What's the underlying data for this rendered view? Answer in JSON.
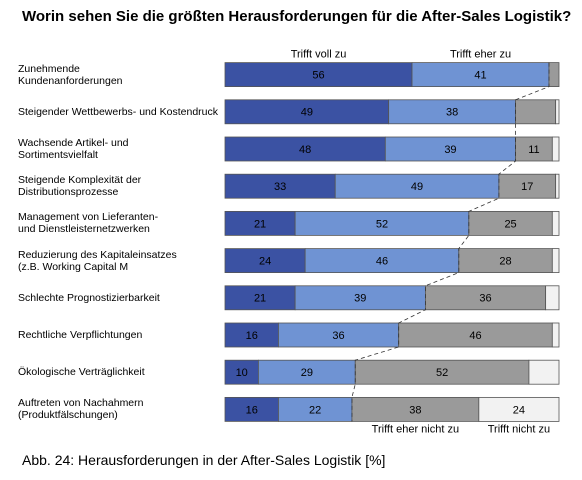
{
  "chart_data": {
    "type": "stacked-bar-horizontal",
    "title": "Worin sehen Sie die größten Herausforderungen für die After-Sales Logistik?",
    "caption": "Abb. 24: Herausforderungen in der After-Sales Logistik [%]",
    "categories": [
      "Zunehmende\nKundenanforderungen",
      "Steigender Wettbewerbs- und Kostendruck",
      "Wachsende Artikel- und\nSortimentsvielfalt",
      "Steigende Komplexität der\nDistributionsprozesse",
      "Management von Lieferanten-\nund Dienstleisternetzwerken",
      "Reduzierung des Kapitaleinsatzes\n(z.B. Working Capital M",
      "Schlechte Prognostizierbarkeit",
      "Rechtliche Verpflichtungen",
      "Ökologische Verträglichkeit",
      "Auftreten von Nachahmern\n(Produktfälschungen)"
    ],
    "xlim": [
      0,
      100
    ],
    "series": [
      {
        "name": "Trifft voll zu",
        "color": "#3b52a3",
        "label_color": "#ffffff",
        "legend": "top",
        "values": [
          56,
          49,
          48,
          33,
          21,
          24,
          21,
          16,
          10,
          16
        ],
        "value_labels": [
          "56",
          "49",
          "48",
          "33",
          "21",
          "24",
          "21",
          "16",
          "10",
          "16"
        ]
      },
      {
        "name": "Trifft eher zu",
        "color": "#6f93d3",
        "label_color": "#ffffff",
        "legend": "top",
        "values": [
          41,
          38,
          39,
          49,
          52,
          46,
          39,
          36,
          29,
          22
        ],
        "value_labels": [
          "41",
          "38",
          "39",
          "49",
          "52",
          "46",
          "39",
          "36",
          "29",
          "22"
        ]
      },
      {
        "name": "Trifft eher nicht zu",
        "color": "#9a9a9a",
        "label_color": "#000000",
        "legend": "bottom",
        "values": [
          3,
          12,
          11,
          17,
          25,
          28,
          36,
          46,
          52,
          38
        ],
        "value_labels": [
          null,
          null,
          "11",
          "17",
          "25",
          "28",
          "36",
          "46",
          "52",
          "38"
        ]
      },
      {
        "name": "Trifft nicht zu",
        "color": "#f2f2f2",
        "label_color": "#000000",
        "legend": "bottom",
        "values": [
          0,
          1,
          2,
          1,
          2,
          2,
          4,
          2,
          9,
          24
        ],
        "value_labels": [
          null,
          null,
          null,
          null,
          null,
          null,
          null,
          null,
          null,
          "24"
        ]
      }
    ]
  }
}
